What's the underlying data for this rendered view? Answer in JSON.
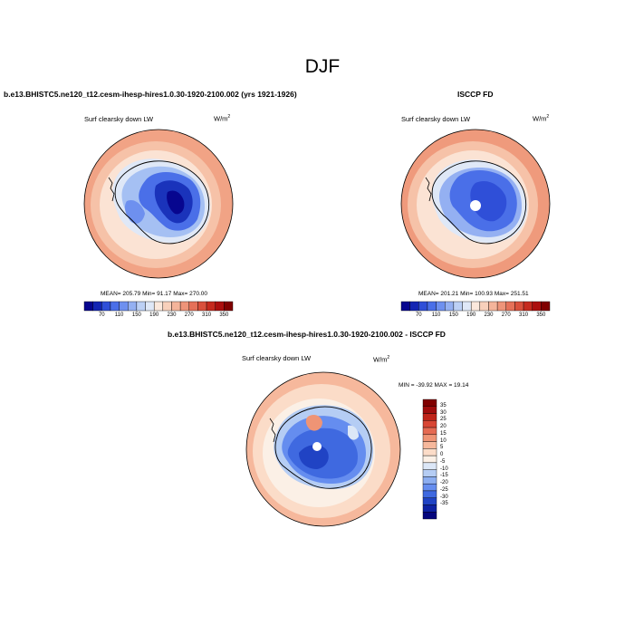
{
  "page": {
    "title": "DJF",
    "left_panel_title": "b.e13.BHISTC5.ne120_t12.cesm-ihesp-hires1.0.30-1920-2100.002 (yrs 1921-1926)",
    "right_panel_title": "ISCCP FD",
    "diff_panel_title": "b.e13.BHISTC5.ne120_t12.cesm-ihesp-hires1.0.30-1920-2100.002 - ISCCP FD"
  },
  "panels": {
    "model": {
      "variable": "Surf clearsky down LW",
      "units": "W/m",
      "units_exp": "2",
      "stats": "MEAN= 205.79  Min=  91.17  Max= 270.00"
    },
    "obs": {
      "variable": "Surf clearsky down LW",
      "units": "W/m",
      "units_exp": "2",
      "stats": "MEAN= 201.21  Min= 100.93  Max= 251.51"
    },
    "diff": {
      "variable": "Surf clearsky down LW",
      "units": "W/m",
      "units_exp": "2",
      "stats": "MIN = -39.92 MAX =  19.14"
    }
  },
  "colorbars": {
    "abs_labels": [
      "70",
      "110",
      "150",
      "190",
      "230",
      "270",
      "310",
      "350"
    ],
    "abs_colors": [
      "#07068f",
      "#1325b3",
      "#2f4fd8",
      "#4a6fe8",
      "#6e90ef",
      "#94b0f2",
      "#bcd0f5",
      "#dfe8f7",
      "#fbe8dc",
      "#f8d0bb",
      "#f4b49a",
      "#ee9479",
      "#e57159",
      "#d9503c",
      "#c52a1e",
      "#ab0f0e",
      "#800000"
    ],
    "diff_labels": [
      "35",
      "30",
      "25",
      "20",
      "15",
      "10",
      "5",
      "0",
      "-5",
      "-10",
      "-15",
      "-20",
      "-25",
      "-30",
      "-35"
    ],
    "diff_colors": [
      "#800000",
      "#a00c0c",
      "#bf2419",
      "#d84634",
      "#e56a52",
      "#ef9475",
      "#f6b89c",
      "#fbdcc8",
      "#fbf0e6",
      "#dce7f7",
      "#b5cdf4",
      "#8caef1",
      "#658def",
      "#3f69e0",
      "#2043c4",
      "#0e22a3",
      "#05067d"
    ]
  }
}
